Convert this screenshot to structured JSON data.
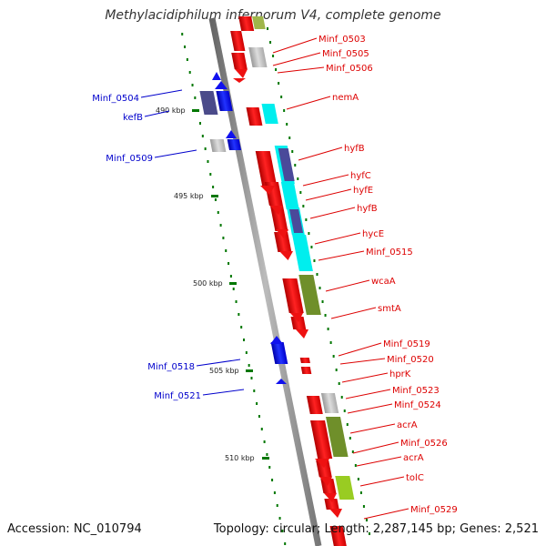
{
  "title": "Methylacidiphilum infernorum V4, complete genome",
  "accession": "Accession: NC_010794",
  "summary": "Topology: circular; Length: 2,287,145 bp; Genes: 2,521",
  "colors": {
    "forward_label": "#dd0000",
    "reverse_label": "#0000cc",
    "forward_gene": "#ee1111",
    "reverse_gene": "#1111ee",
    "backbone": "#888888",
    "tick": "#007700",
    "gray_feature": "#bbbbbb",
    "cyan_feature": "#00eeee",
    "purple_feature": "#4a4a9a",
    "olive_feature": "#6f8f2a",
    "lime_feature": "#99cc22"
  },
  "ticks": [
    {
      "label": "490 kbp"
    },
    {
      "label": "495 kbp"
    },
    {
      "label": "500 kbp"
    },
    {
      "label": "505 kbp"
    },
    {
      "label": "510 kbp"
    }
  ],
  "labels_forward": [
    {
      "text": "Minf_0503"
    },
    {
      "text": "Minf_0505"
    },
    {
      "text": "Minf_0506"
    },
    {
      "text": "nemA"
    },
    {
      "text": "hyfB"
    },
    {
      "text": "hyfC"
    },
    {
      "text": "hyfE"
    },
    {
      "text": "hyfB"
    },
    {
      "text": "hycE"
    },
    {
      "text": "Minf_0515"
    },
    {
      "text": "wcaA"
    },
    {
      "text": "smtA"
    },
    {
      "text": "Minf_0519"
    },
    {
      "text": "Minf_0520"
    },
    {
      "text": "hprK"
    },
    {
      "text": "Minf_0523"
    },
    {
      "text": "Minf_0524"
    },
    {
      "text": "acrA"
    },
    {
      "text": "Minf_0526"
    },
    {
      "text": "acrA"
    },
    {
      "text": "tolC"
    },
    {
      "text": "Minf_0529"
    }
  ],
  "labels_reverse": [
    {
      "text": "Minf_0504"
    },
    {
      "text": "kefB"
    },
    {
      "text": "Minf_0509"
    },
    {
      "text": "Minf_0518"
    },
    {
      "text": "Minf_0521"
    }
  ]
}
